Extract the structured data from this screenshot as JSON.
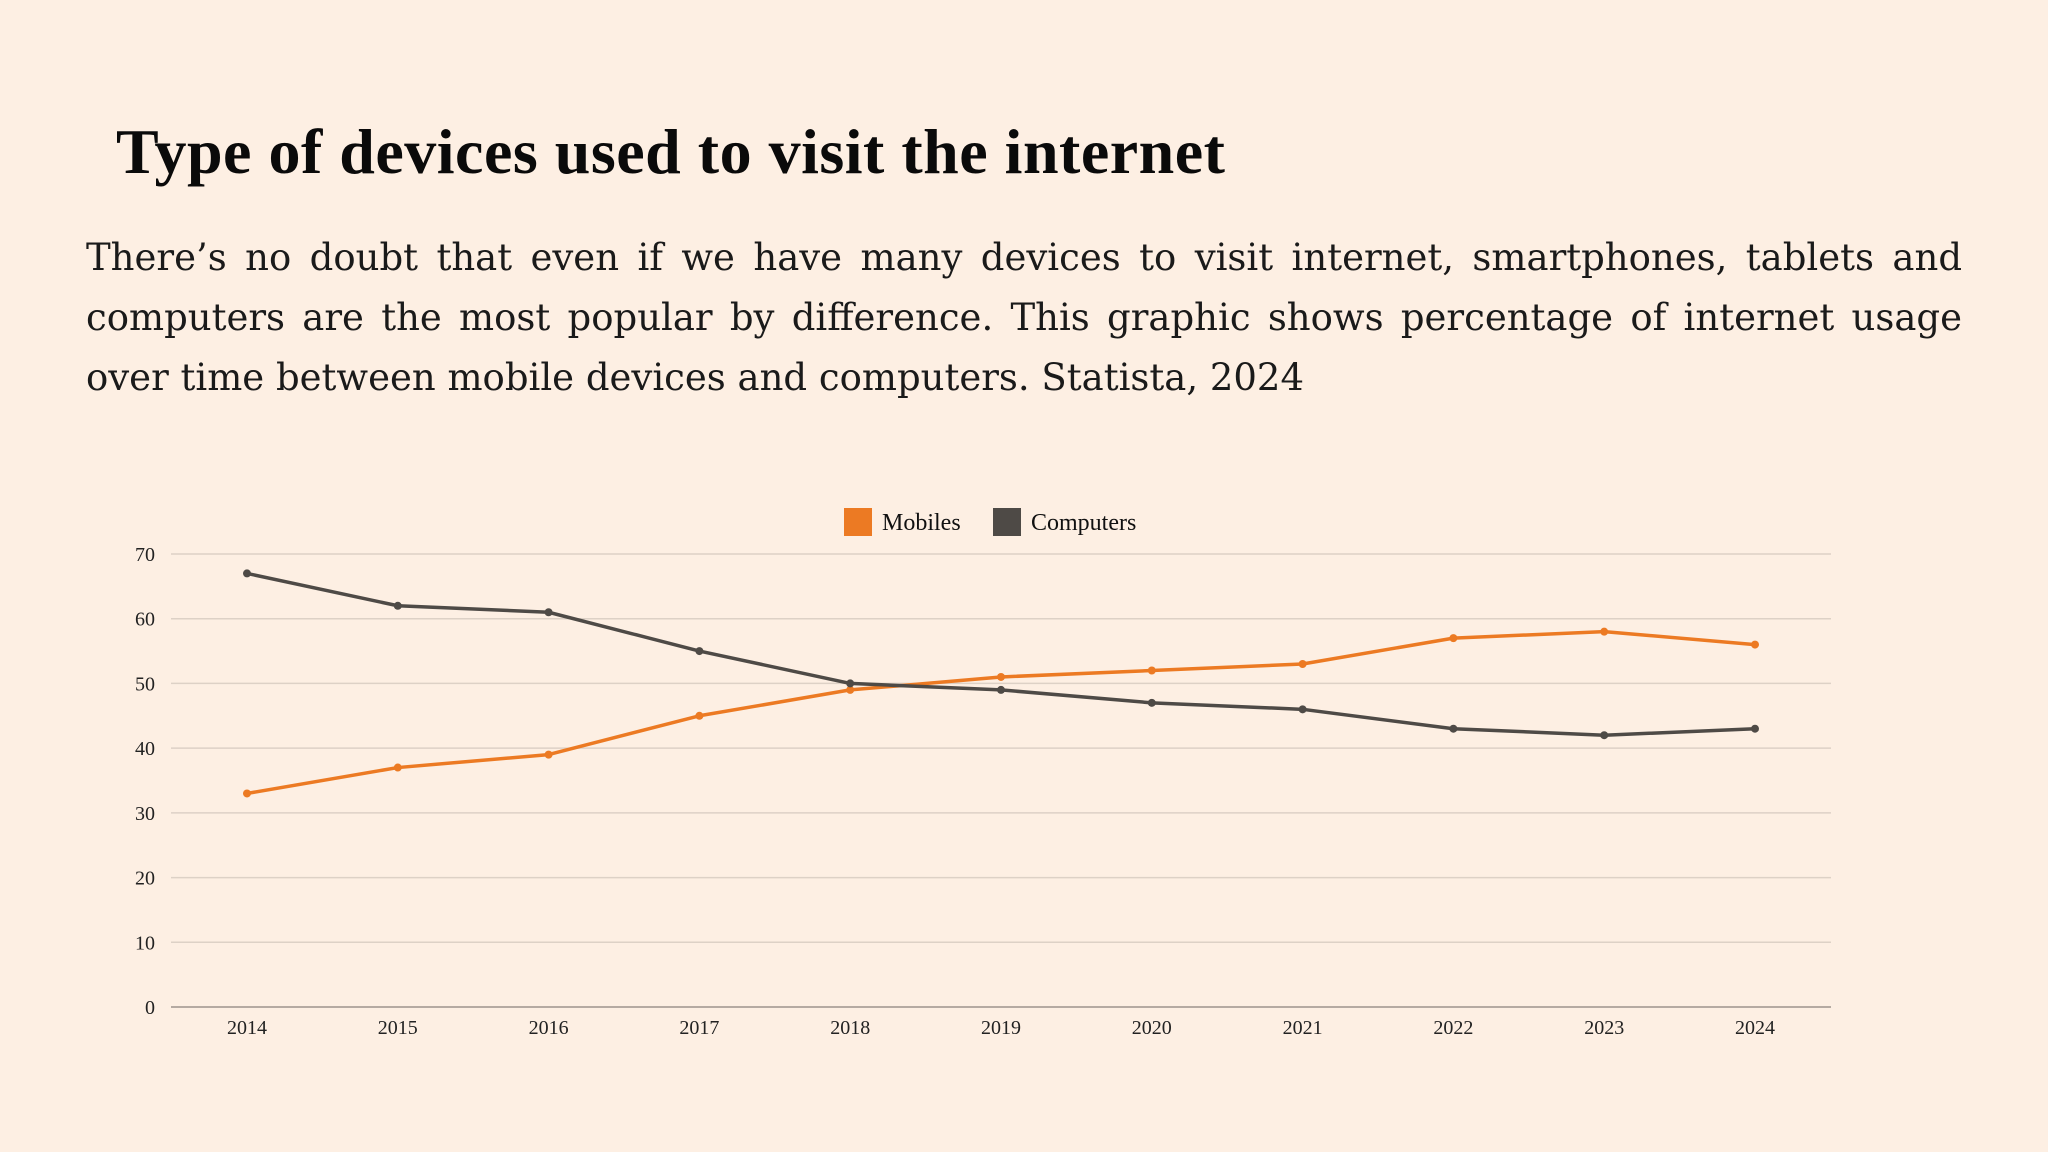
{
  "title": "Type of devices used to visit the internet",
  "description": "There’s no doubt that even if we have many devices to visit internet, smartphones, tablets and computers are the most popular by difference. This graphic shows percentage of internet usage over time between mobile devices and computers. Statista, 2024",
  "chart_data": {
    "type": "line",
    "title": "",
    "xlabel": "",
    "ylabel": "",
    "categories": [
      "2014",
      "2015",
      "2016",
      "2017",
      "2018",
      "2019",
      "2020",
      "2021",
      "2022",
      "2023",
      "2024"
    ],
    "ylim": [
      0,
      70
    ],
    "yticks": [
      0,
      10,
      20,
      30,
      40,
      50,
      60,
      70
    ],
    "grid": true,
    "legend": "top-center",
    "series": [
      {
        "name": "Mobiles",
        "color": "#ec7a23",
        "values": [
          33,
          37,
          39,
          45,
          49,
          51,
          52,
          53,
          57,
          58,
          56
        ]
      },
      {
        "name": "Computers",
        "color": "#4e4a46",
        "values": [
          67,
          62,
          61,
          55,
          50,
          49,
          47,
          46,
          43,
          42,
          43
        ]
      }
    ]
  }
}
